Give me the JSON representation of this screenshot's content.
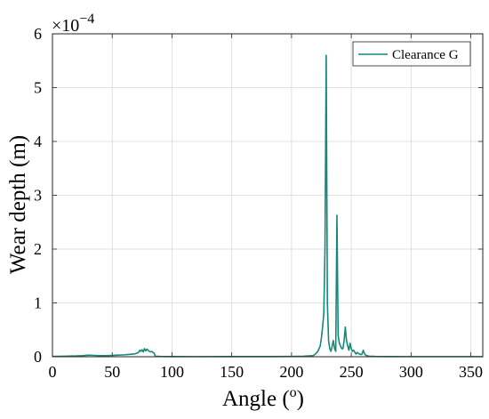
{
  "chart_data": {
    "type": "line",
    "xlabel": "Angle (",
    "xlabel_sup": "o",
    "xlabel_tail": ")",
    "ylabel": "Wear depth (m)",
    "y_multiplier": "×10",
    "y_multiplier_exp": "−4",
    "xlim": [
      0,
      360
    ],
    "ylim": [
      0,
      6
    ],
    "xticks": [
      0,
      50,
      100,
      150,
      200,
      250,
      300,
      350
    ],
    "yticks": [
      0,
      1,
      2,
      3,
      4,
      5,
      6
    ],
    "grid": true,
    "legend_position": "top-right",
    "series": [
      {
        "name": "Clearance G",
        "color": "#16897a",
        "x": [
          0,
          10,
          20,
          25,
          30,
          35,
          40,
          45,
          50,
          55,
          60,
          65,
          68,
          70,
          72,
          73,
          74,
          75,
          76,
          77,
          78,
          79,
          80,
          81,
          82,
          83,
          84,
          85,
          86,
          90,
          100,
          120,
          150,
          180,
          200,
          210,
          218,
          220,
          222,
          224,
          225,
          226,
          227,
          228,
          229,
          230,
          231,
          232,
          233,
          234,
          235,
          236,
          237,
          238,
          239,
          240,
          241,
          242,
          243,
          244,
          245,
          246,
          247,
          248,
          249,
          250,
          251,
          252,
          253,
          254,
          255,
          256,
          257,
          258,
          259,
          260,
          261,
          262,
          263,
          265,
          270,
          280,
          300,
          330,
          360
        ],
        "y": [
          0.005,
          0.01,
          0.015,
          0.02,
          0.03,
          0.025,
          0.02,
          0.02,
          0.025,
          0.03,
          0.035,
          0.045,
          0.05,
          0.06,
          0.08,
          0.12,
          0.1,
          0.13,
          0.09,
          0.15,
          0.11,
          0.14,
          0.12,
          0.1,
          0.09,
          0.1,
          0.08,
          0.07,
          0.01,
          0.005,
          0.003,
          0.002,
          0.003,
          0.003,
          0.005,
          0.01,
          0.02,
          0.05,
          0.1,
          0.2,
          0.35,
          0.55,
          0.8,
          2.0,
          5.6,
          1.0,
          0.3,
          0.15,
          0.1,
          0.2,
          0.3,
          0.15,
          0.1,
          2.63,
          0.4,
          0.25,
          0.2,
          0.15,
          0.15,
          0.3,
          0.55,
          0.3,
          0.2,
          0.12,
          0.25,
          0.15,
          0.1,
          0.12,
          0.08,
          0.05,
          0.08,
          0.06,
          0.05,
          0.04,
          0.05,
          0.12,
          0.06,
          0.03,
          0.02,
          0.01,
          0.005,
          0.003,
          0.002,
          0.002,
          0.002
        ]
      }
    ]
  }
}
